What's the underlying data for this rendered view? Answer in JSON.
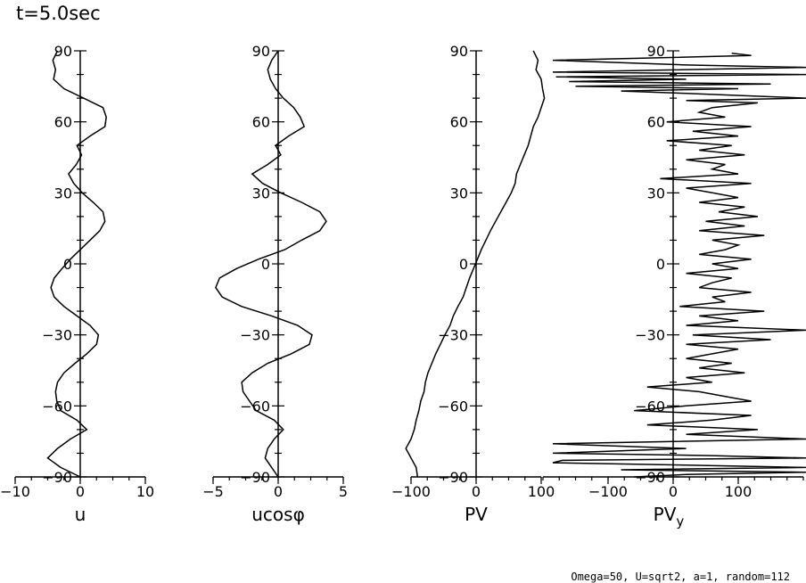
{
  "title": "t=5.0sec",
  "footer": "Omega=50, U=sqrt2, a=1, random=112",
  "chart_data": [
    {
      "type": "line",
      "xlabel": "u",
      "x_ticks": [
        "−10",
        "0",
        "10"
      ],
      "xlim": [
        -10,
        10
      ],
      "y_ticks": [
        "90",
        "60",
        "30",
        "0",
        "−30",
        "−60",
        "−90"
      ],
      "ylim": [
        -90,
        90
      ],
      "series": [
        {
          "y": [
            90,
            86,
            82,
            78,
            74,
            70,
            66,
            62,
            58,
            54,
            50,
            46,
            42,
            38,
            34,
            30,
            26,
            22,
            18,
            14,
            10,
            6,
            2,
            -2,
            -6,
            -10,
            -14,
            -18,
            -22,
            -26,
            -30,
            -34,
            -38,
            -42,
            -46,
            -50,
            -54,
            -58,
            -62,
            -66,
            -70,
            -74,
            -78,
            -82,
            -86,
            -90
          ],
          "x": [
            -3.5,
            -4.2,
            -3.8,
            -4.1,
            -2.5,
            0.5,
            3.5,
            4.0,
            3.8,
            1.5,
            -0.5,
            0.2,
            -0.6,
            -1.8,
            -1.0,
            0.3,
            2.0,
            3.5,
            3.8,
            3.0,
            1.5,
            0.0,
            -1.5,
            -2.8,
            -4.0,
            -4.5,
            -4.0,
            -2.5,
            -0.5,
            1.5,
            2.8,
            2.5,
            1.0,
            -0.8,
            -2.5,
            -3.5,
            -3.8,
            -3.6,
            -3.0,
            -0.5,
            1.0,
            -1.5,
            -3.5,
            -5.0,
            -3.0,
            0.0
          ]
        }
      ]
    },
    {
      "type": "line",
      "xlabel": "ucosφ",
      "x_ticks": [
        "−5",
        "0",
        "5"
      ],
      "xlim": [
        -5,
        5
      ],
      "y_ticks": [
        "90",
        "60",
        "30",
        "0",
        "−30",
        "−60",
        "−90"
      ],
      "ylim": [
        -90,
        90
      ],
      "series": [
        {
          "y": [
            90,
            86,
            82,
            78,
            74,
            70,
            66,
            62,
            58,
            54,
            50,
            46,
            42,
            38,
            34,
            30,
            26,
            22,
            18,
            14,
            10,
            6,
            2,
            -2,
            -6,
            -10,
            -14,
            -18,
            -22,
            -26,
            -30,
            -34,
            -38,
            -42,
            -46,
            -50,
            -54,
            -58,
            -62,
            -66,
            -70,
            -74,
            -78,
            -82,
            -86,
            -90
          ],
          "x": [
            0.0,
            -0.5,
            -0.8,
            -0.6,
            -0.2,
            0.4,
            1.2,
            1.7,
            2.0,
            0.8,
            -0.2,
            0.2,
            -0.8,
            -2.0,
            -1.2,
            0.2,
            1.8,
            3.2,
            3.7,
            3.2,
            1.8,
            0.5,
            -1.5,
            -3.2,
            -4.5,
            -4.8,
            -4.3,
            -2.8,
            -0.5,
            1.5,
            2.6,
            2.4,
            1.0,
            -0.8,
            -2.0,
            -2.8,
            -2.7,
            -2.2,
            -1.7,
            -0.3,
            0.4,
            -0.3,
            -0.8,
            -1.0,
            -0.5,
            0.0
          ]
        }
      ]
    },
    {
      "type": "line",
      "xlabel": "PV",
      "x_ticks": [
        "−100",
        "0",
        "100"
      ],
      "xlim": [
        -100,
        100
      ],
      "y_ticks": [
        "90",
        "60",
        "30",
        "0",
        "−30",
        "−60",
        "−90"
      ],
      "ylim": [
        -90,
        90
      ],
      "series": [
        {
          "y": [
            90,
            86,
            82,
            78,
            74,
            70,
            66,
            62,
            58,
            54,
            50,
            46,
            42,
            38,
            34,
            30,
            26,
            22,
            18,
            14,
            10,
            6,
            2,
            -2,
            -6,
            -10,
            -14,
            -18,
            -22,
            -26,
            -30,
            -34,
            -38,
            -42,
            -46,
            -50,
            -54,
            -58,
            -62,
            -66,
            -70,
            -74,
            -78,
            -82,
            -86,
            -90
          ],
          "x": [
            88,
            95,
            92,
            100,
            102,
            105,
            100,
            95,
            88,
            84,
            80,
            74,
            68,
            62,
            60,
            54,
            46,
            38,
            30,
            22,
            15,
            8,
            2,
            -4,
            -10,
            -15,
            -20,
            -28,
            -35,
            -40,
            -48,
            -55,
            -62,
            -68,
            -74,
            -78,
            -80,
            -85,
            -88,
            -92,
            -95,
            -100,
            -108,
            -100,
            -92,
            -90
          ]
        }
      ]
    },
    {
      "type": "line",
      "xlabel": "PV",
      "xlabel_sub": "y",
      "x_ticks": [
        "−100",
        "0",
        "100"
      ],
      "xlim": [
        -200,
        200
      ],
      "y_ticks": [
        "90",
        "60",
        "30",
        "0",
        "−30",
        "−60",
        "−90"
      ],
      "ylim": [
        -90,
        90
      ],
      "series": [
        {
          "y": [
            89,
            88,
            86,
            84,
            83,
            81,
            80,
            79,
            78,
            77,
            76,
            75,
            74,
            73,
            72,
            70,
            69,
            68,
            66,
            64,
            62,
            60,
            58,
            56,
            54,
            52,
            50,
            48,
            46,
            44,
            42,
            40,
            38,
            36,
            34,
            32,
            30,
            28,
            26,
            24,
            22,
            20,
            18,
            16,
            14,
            12,
            10,
            8,
            6,
            4,
            2,
            0,
            -2,
            -4,
            -6,
            -8,
            -10,
            -12,
            -14,
            -16,
            -18,
            -20,
            -22,
            -24,
            -26,
            -28,
            -30,
            -32,
            -34,
            -36,
            -38,
            -40,
            -42,
            -44,
            -46,
            -48,
            -50,
            -52,
            -54,
            -56,
            -58,
            -60,
            -62,
            -64,
            -66,
            -68,
            -70,
            -72,
            -74,
            -76,
            -78,
            -80,
            -81,
            -82,
            -83,
            -84,
            -85,
            -86,
            -87,
            -88,
            -89,
            -90
          ],
          "x": [
            90,
            120,
            -190,
            20,
            205,
            -190,
            205,
            -180,
            20,
            -160,
            150,
            -150,
            100,
            -80,
            20,
            205,
            20,
            130,
            60,
            40,
            80,
            -10,
            120,
            30,
            100,
            -10,
            90,
            40,
            110,
            20,
            80,
            60,
            100,
            -20,
            120,
            20,
            60,
            100,
            40,
            110,
            70,
            130,
            50,
            110,
            40,
            140,
            60,
            100,
            80,
            40,
            120,
            60,
            100,
            20,
            90,
            60,
            40,
            120,
            60,
            80,
            10,
            140,
            40,
            100,
            20,
            205,
            30,
            150,
            20,
            100,
            60,
            20,
            90,
            40,
            110,
            20,
            60,
            -40,
            40,
            80,
            120,
            20,
            -60,
            120,
            60,
            -40,
            130,
            20,
            205,
            -190,
            20,
            -190,
            60,
            205,
            -170,
            -190,
            20,
            205,
            -80,
            205,
            20,
            -60
          ]
        }
      ]
    }
  ]
}
